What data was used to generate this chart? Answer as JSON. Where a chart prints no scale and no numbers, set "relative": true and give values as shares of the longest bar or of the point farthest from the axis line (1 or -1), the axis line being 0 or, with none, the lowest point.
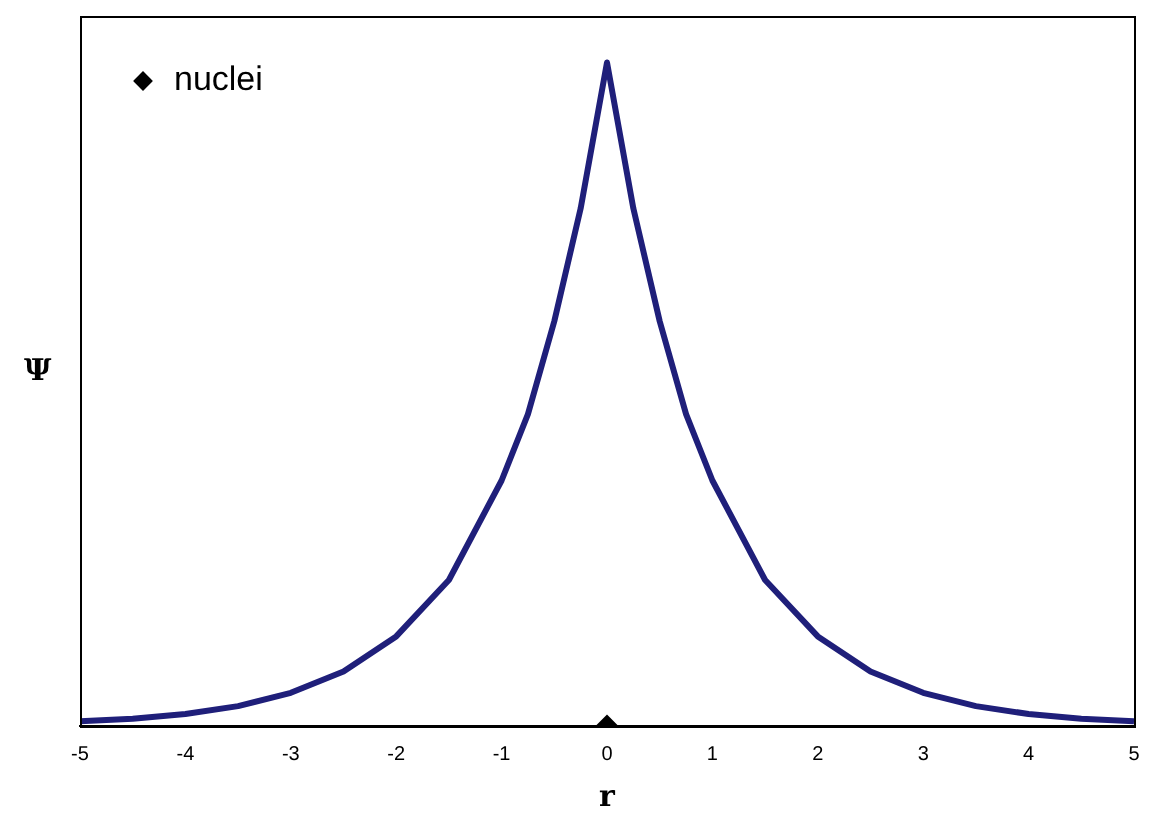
{
  "chart_data": {
    "type": "line",
    "xlabel": "r",
    "ylabel": "Ψ",
    "relative": true,
    "x": [
      -5,
      -4.5,
      -4,
      -3.5,
      -3,
      -2.5,
      -2,
      -1.5,
      -1,
      -0.75,
      -0.5,
      -0.25,
      0,
      0.25,
      0.5,
      0.75,
      1,
      1.5,
      2,
      2.5,
      3,
      3.5,
      4,
      4.5,
      5
    ],
    "xlim": [
      -5,
      5
    ],
    "xticks": [
      -5,
      -4,
      -3,
      -2,
      -1,
      0,
      1,
      2,
      3,
      4,
      5
    ],
    "series": [
      {
        "color": "#1f1f7a",
        "marker": "none",
        "values": [
          0.007,
          0.011,
          0.018,
          0.03,
          0.05,
          0.082,
          0.135,
          0.22,
          0.37,
          0.47,
          0.61,
          0.78,
          1,
          0.78,
          0.61,
          0.47,
          0.37,
          0.22,
          0.135,
          0.082,
          0.05,
          0.03,
          0.018,
          0.011,
          0.007
        ]
      },
      {
        "type": "scatter",
        "name": "nuclei",
        "color": "#000000",
        "marker": "diamond",
        "x": [
          0
        ],
        "values": [
          0
        ]
      }
    ],
    "legend": "top left",
    "grid": false
  }
}
